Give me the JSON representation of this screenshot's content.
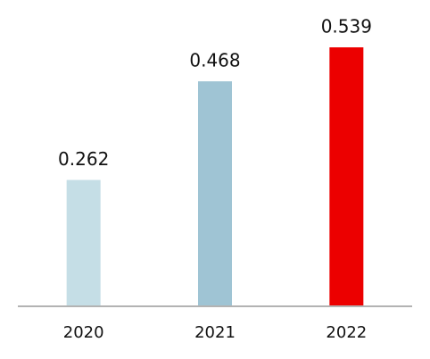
{
  "chart_data": {
    "type": "bar",
    "categories": [
      "2020",
      "2021",
      "2022"
    ],
    "values": [
      0.262,
      0.468,
      0.539
    ],
    "colors": [
      "#c5dee6",
      "#9fc4d4",
      "#ec0000"
    ]
  }
}
